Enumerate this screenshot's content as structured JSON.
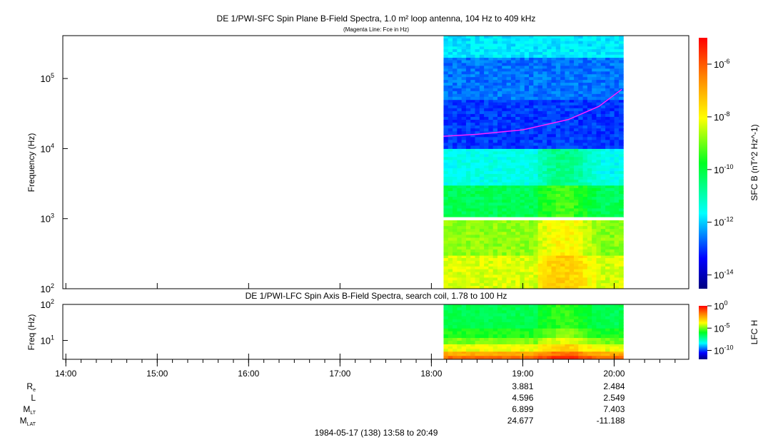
{
  "chart_data": [
    {
      "type": "heatmap",
      "title": "DE 1/PWI-SFC  Spin Plane B-Field Spectra, 1.0 m² loop antenna, 104 Hz to 409 kHz",
      "subtitle": "(Magenta Line: Fce in Hz)",
      "ylabel": "Frequency (Hz)",
      "yscale": "log",
      "ylim": [
        100,
        409000
      ],
      "yticks": [
        "10^2",
        "10^3",
        "10^4",
        "10^5"
      ],
      "colorbar": {
        "label": "SFC B (nT^2 Hz^-1)",
        "scale": "log",
        "range": [
          3e-15,
          1e-05
        ],
        "ticks": [
          "10^-6",
          "10^-8",
          "10^-10",
          "10^-12",
          "10^-14"
        ]
      },
      "data_start": "18:08",
      "data_end": "20:06",
      "spectrum_bands": [
        {
          "f_low": 100,
          "f_high": 300,
          "log_level": -8.3
        },
        {
          "f_low": 300,
          "f_high": 950,
          "log_level": -8.8
        },
        {
          "f_low": 1050,
          "f_high": 3000,
          "log_level": -10.2
        },
        {
          "f_low": 3000,
          "f_high": 10000,
          "log_level": -11.5
        },
        {
          "f_low": 10000,
          "f_high": 50000,
          "log_level": -13.0
        },
        {
          "f_low": 50000,
          "f_high": 200000,
          "log_level": -12.6
        },
        {
          "f_low": 200000,
          "f_high": 409000,
          "log_level": -11.8
        }
      ],
      "fce_line": {
        "color": "#ff22ff",
        "times": [
          "18:08",
          "18:30",
          "19:00",
          "19:30",
          "19:50",
          "20:05"
        ],
        "values_hz": [
          15000,
          16000,
          18500,
          26000,
          40000,
          70000
        ]
      }
    },
    {
      "type": "heatmap",
      "title": "DE 1/PWI-LFC  Spin Axis B-Field Spectra, search coil, 1.78 to 100 Hz",
      "ylabel": "Freq (Hz)",
      "yscale": "log",
      "ylim": [
        3,
        100
      ],
      "yticks": [
        "10^1",
        "10^2"
      ],
      "colorbar": {
        "label": "LFC H",
        "scale": "log",
        "range": [
          1e-12,
          1
        ],
        "ticks": [
          "10^0",
          "10^-5",
          "10^-10"
        ]
      },
      "data_start": "18:08",
      "data_end": "20:06",
      "spectrum_bands": [
        {
          "f_low": 3,
          "f_high": 3.8,
          "log_level": -1.5
        },
        {
          "f_low": 3.8,
          "f_high": 5,
          "log_level": -2.5
        },
        {
          "f_low": 5,
          "f_high": 8,
          "log_level": -4.0
        },
        {
          "f_low": 8,
          "f_high": 12,
          "log_level": -5.0
        },
        {
          "f_low": 12,
          "f_high": 22,
          "log_level": -5.8
        },
        {
          "f_low": 22,
          "f_high": 100,
          "log_level": -6.5
        }
      ]
    }
  ],
  "time_axis": {
    "ticks": [
      "14:00",
      "15:00",
      "16:00",
      "17:00",
      "18:00",
      "19:00",
      "20:00"
    ],
    "range": [
      "13:58",
      "20:49"
    ],
    "footer": "1984-05-17 (138) 13:58 to 20:49"
  },
  "ephemeris": {
    "rows": [
      {
        "label": "R",
        "sub": "e",
        "values": [
          "3.881",
          "2.484"
        ]
      },
      {
        "label": "L",
        "sub": "",
        "values": [
          "4.596",
          "2.549"
        ]
      },
      {
        "label": "M",
        "sub": "LT",
        "values": [
          "6.899",
          "7.403"
        ]
      },
      {
        "label": "M",
        "sub": "LAT",
        "values": [
          "24.677",
          "-11.188"
        ]
      }
    ],
    "at_times": [
      "19:00",
      "20:00"
    ]
  }
}
